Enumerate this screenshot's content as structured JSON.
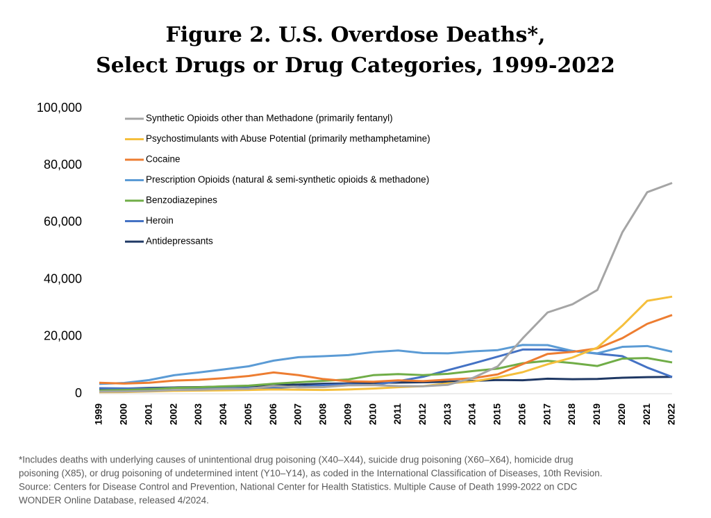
{
  "chart_data": {
    "type": "line",
    "title": [
      "Figure 2. U.S. Overdose Deaths*,",
      "Select Drugs or Drug Categories, 1999-2022"
    ],
    "categories": [
      "1999",
      "2000",
      "2001",
      "2002",
      "2003",
      "2004",
      "2005",
      "2006",
      "2007",
      "2008",
      "2009",
      "2010",
      "2011",
      "2012",
      "2013",
      "2014",
      "2015",
      "2016",
      "2017",
      "2018",
      "2019",
      "2020",
      "2021",
      "2022"
    ],
    "ylim": [
      0,
      100000
    ],
    "yticks": [
      {
        "value": 0,
        "label": "0"
      },
      {
        "value": 20000,
        "label": "20,000"
      },
      {
        "value": 40000,
        "label": "40,000"
      },
      {
        "value": 60000,
        "label": "60,000"
      },
      {
        "value": 80000,
        "label": "80,000"
      },
      {
        "value": 100000,
        "label": "100,000"
      }
    ],
    "grid": false,
    "legend": "top-left",
    "series": [
      {
        "name": "Synthetic Opioids other than Methadone (primarily fentanyl)",
        "color": "#a5a5a5",
        "values": [
          730,
          782,
          957,
          1295,
          1400,
          1664,
          1742,
          2707,
          2213,
          2306,
          2946,
          3007,
          2666,
          2628,
          3105,
          5544,
          9580,
          19413,
          28466,
          31335,
          36359,
          56516,
          70601,
          73838
        ]
      },
      {
        "name": "Psychostimulants with Abuse Potential (primarily methamphetamine)",
        "color": "#f5bf3c",
        "values": [
          547,
          578,
          800,
          1000,
          1100,
          1200,
          1300,
          1500,
          1400,
          1300,
          1500,
          1800,
          2266,
          2635,
          3627,
          4298,
          5716,
          7542,
          10333,
          12676,
          16167,
          23837,
          32537,
          34022
        ]
      },
      {
        "name": "Cocaine",
        "color": "#ed7d31",
        "values": [
          3822,
          3544,
          3833,
          4599,
          4867,
          5443,
          6208,
          7448,
          6512,
          5129,
          4350,
          4183,
          4681,
          4404,
          4944,
          5415,
          6784,
          10375,
          13942,
          14666,
          15883,
          19447,
          24486,
          27569
        ]
      },
      {
        "name": "Prescription Opioids (natural & semi-synthetic opioids & methadone)",
        "color": "#5b9bd5",
        "values": [
          3442,
          3785,
          4770,
          6483,
          7456,
          8517,
          9612,
          11589,
          12796,
          13149,
          13523,
          14583,
          15140,
          14240,
          14145,
          14838,
          15281,
          17087,
          17029,
          14975,
          14139,
          16416,
          16706,
          14716
        ]
      },
      {
        "name": "Benzodiazepines",
        "color": "#70ad47",
        "values": [
          1135,
          1298,
          1594,
          2003,
          2248,
          2585,
          2834,
          3500,
          4000,
          4500,
          5000,
          6497,
          6872,
          6524,
          6973,
          7945,
          8791,
          10684,
          11537,
          10724,
          9711,
          12290,
          12499,
          10964
        ]
      },
      {
        "name": "Heroin",
        "color": "#4472c4",
        "values": [
          1960,
          1842,
          1779,
          2089,
          2080,
          1878,
          2009,
          2088,
          2399,
          3041,
          3278,
          3036,
          4397,
          5925,
          8257,
          10574,
          12989,
          15469,
          15482,
          14996,
          14019,
          13165,
          9173,
          5871
        ]
      },
      {
        "name": "Antidepressants",
        "color": "#1f3864",
        "values": [
          1749,
          1800,
          2000,
          2200,
          2300,
          2500,
          2700,
          3000,
          3200,
          3500,
          3600,
          3800,
          3900,
          4000,
          4200,
          4500,
          4800,
          4700,
          5269,
          5064,
          5184,
          5597,
          5800,
          5900
        ]
      }
    ],
    "footnote": [
      "*Includes deaths with underlying causes of unintentional drug poisoning (X40–X44), suicide drug poisoning (X60–X64), homicide drug",
      "poisoning (X85), or drug poisoning of undetermined intent (Y10–Y14), as coded in the International Classification of Diseases, 10th Revision.",
      "Source: Centers for Disease Control and Prevention, National Center for Health Statistics. Multiple Cause of Death 1999-2022 on CDC",
      "WONDER Online Database, released 4/2024."
    ]
  }
}
